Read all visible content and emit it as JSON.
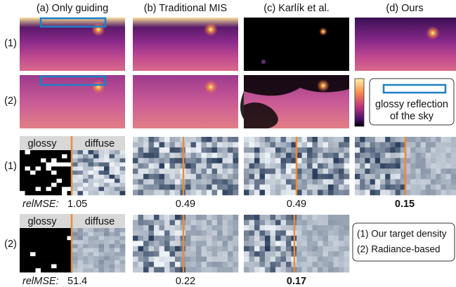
{
  "columns": [
    "(a) Only guiding",
    "(b) Traditional MIS",
    "(c) Karlík et al.",
    "(d) Ours"
  ],
  "image_rows": [
    "(1)",
    "(2)"
  ],
  "colorbar_legend": [
    "glossy reflection",
    "of the sky"
  ],
  "noise_rows": [
    {
      "label": "(1)",
      "glossy": "glossy",
      "diffuse": "diffuse",
      "metric": "relMSE:",
      "values": [
        1.05,
        0.49,
        0.49,
        0.15
      ],
      "best": 3
    },
    {
      "label": "(2)",
      "glossy": "glossy",
      "diffuse": "diffuse",
      "metric": "relMSE:",
      "values": [
        51.4,
        0.22,
        0.17
      ],
      "best": 2
    }
  ],
  "key": [
    "(1) Our target density",
    "(2) Radiance-based"
  ]
}
